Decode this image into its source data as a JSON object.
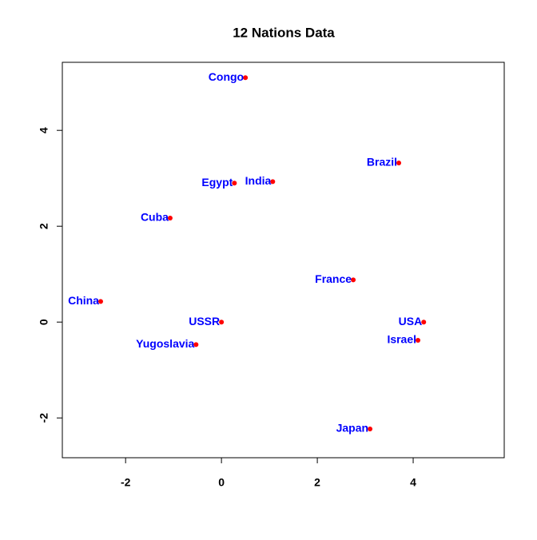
{
  "chart_data": {
    "type": "scatter",
    "title": "12 Nations Data",
    "labels": [
      "Congo",
      "Brazil",
      "Egypt",
      "India",
      "Cuba",
      "France",
      "China",
      "USSR",
      "USA",
      "Israel",
      "Yugoslavia",
      "Japan"
    ],
    "x": [
      0.5,
      3.7,
      0.27,
      1.07,
      -1.07,
      2.75,
      -2.52,
      0,
      4.22,
      4.1,
      -0.53,
      3.1
    ],
    "values": [
      5.1,
      3.32,
      2.9,
      2.93,
      2.17,
      0.88,
      0.43,
      0,
      0,
      -0.38,
      -0.47,
      -2.23
    ],
    "color": "#ff0000",
    "label_color": "#0000ff",
    "xlim": [
      -3.32,
      5.9
    ],
    "ylim": [
      -2.83,
      5.42
    ],
    "xticks": [
      -2,
      0,
      2,
      4
    ],
    "yticks": [
      -2,
      0,
      2,
      4
    ]
  }
}
